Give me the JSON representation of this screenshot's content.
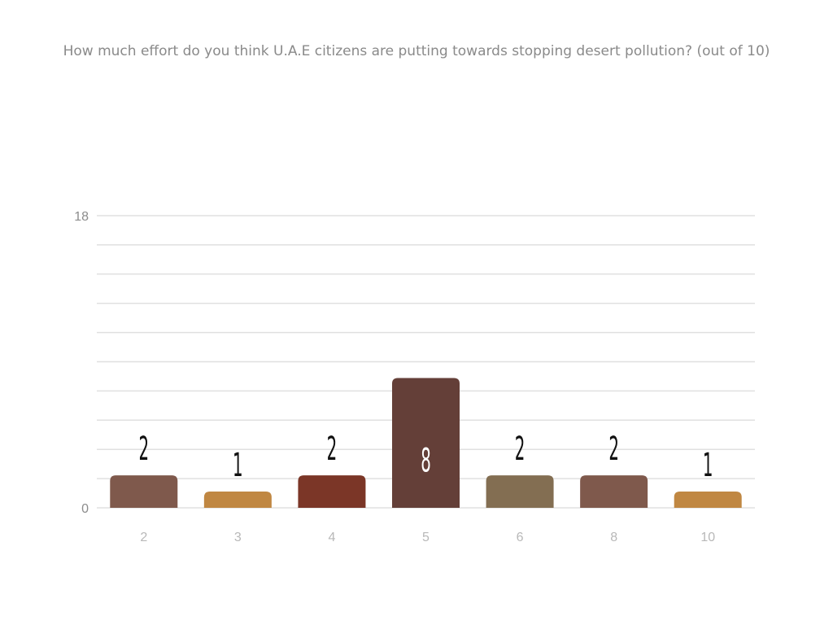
{
  "chart_data": {
    "type": "bar",
    "title": "How much effort do you think U.A.E citizens are putting towards stopping desert pollution? (out of 10)",
    "categories": [
      "2",
      "3",
      "4",
      "5",
      "6",
      "8",
      "10"
    ],
    "values": [
      2,
      1,
      2,
      8,
      2,
      2,
      1
    ],
    "colors": [
      "#7f594c",
      "#c08742",
      "#7b3627",
      "#643f38",
      "#836e52",
      "#7f594c",
      "#c08742"
    ],
    "ylim": [
      0,
      18
    ],
    "y_tick_labels": [
      "0",
      "18"
    ],
    "xlabel": "",
    "ylabel": "",
    "grid": true,
    "data_labels": true,
    "gridline_color": "#e0e0e0"
  }
}
